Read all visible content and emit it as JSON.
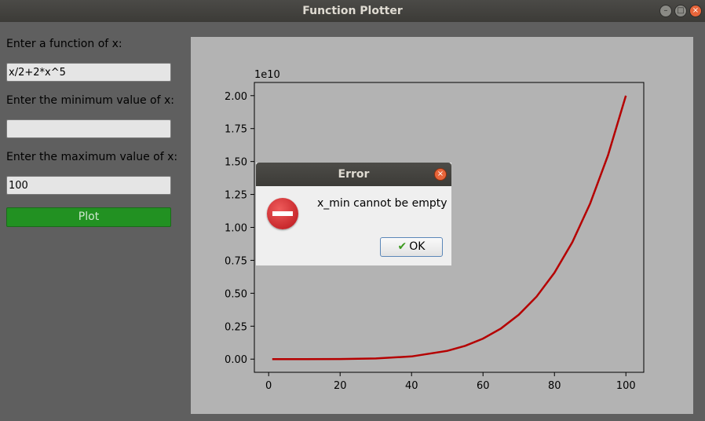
{
  "window": {
    "title": "Function Plotter",
    "buttons": {
      "minimize": "–",
      "maximize": "□",
      "close": "×"
    }
  },
  "form": {
    "function_label": "Enter a function of x:",
    "function_value": "x/2+2*x^5",
    "min_label": "Enter the minimum value of x:",
    "min_value": "",
    "max_label": "Enter the maximum value of x:",
    "max_value": "100",
    "plot_button": "Plot"
  },
  "chart_data": {
    "type": "line",
    "title": "",
    "xlabel": "",
    "ylabel": "",
    "offset_label": "1e10",
    "xlim": [
      -4,
      105
    ],
    "ylim": [
      -0.1,
      2.1
    ],
    "x_ticks": [
      0,
      20,
      40,
      60,
      80,
      100
    ],
    "y_ticks": [
      0.0,
      0.25,
      0.5,
      0.75,
      1.0,
      1.25,
      1.5,
      1.75,
      2.0
    ],
    "x_tick_labels": [
      "0",
      "20",
      "40",
      "60",
      "80",
      "100"
    ],
    "y_tick_labels": [
      "0.00",
      "0.25",
      "0.50",
      "0.75",
      "1.00",
      "1.25",
      "1.50",
      "1.75",
      "2.00"
    ],
    "series": [
      {
        "color": "#b50000",
        "x": [
          1,
          10,
          20,
          30,
          40,
          50,
          55,
          60,
          65,
          70,
          75,
          80,
          85,
          90,
          95,
          100
        ],
        "y": [
          0.0,
          2e-05,
          0.00064,
          0.00486,
          0.02048,
          0.0625,
          0.10066,
          0.15552,
          0.23206,
          0.33614,
          0.47461,
          0.65536,
          0.88741,
          1.18098,
          1.54762,
          2.0
        ]
      }
    ]
  },
  "dialog": {
    "title": "Error",
    "message": "x_min cannot be empty",
    "ok_label": "OK",
    "close_glyph": "×"
  }
}
